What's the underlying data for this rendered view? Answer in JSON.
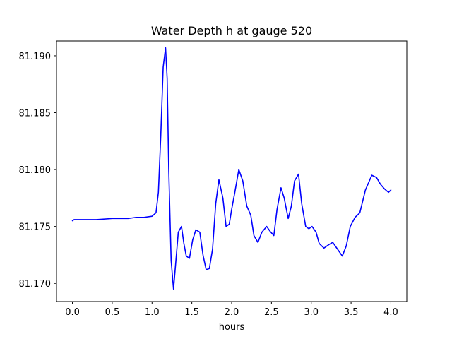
{
  "chart_data": {
    "type": "line",
    "title": "Water Depth h at gauge 520",
    "xlabel": "hours",
    "ylabel": "",
    "xlim": [
      -0.2,
      4.2
    ],
    "ylim": [
      81.1684,
      81.1913
    ],
    "xticks": [
      "0.0",
      "0.5",
      "1.0",
      "1.5",
      "2.0",
      "2.5",
      "3.0",
      "3.5",
      "4.0"
    ],
    "yticks": [
      "81.170",
      "81.175",
      "81.180",
      "81.185",
      "81.190"
    ],
    "grid": false,
    "legend": "none",
    "series": [
      {
        "color": "#0000ff",
        "x": [
          0.0,
          0.02,
          0.1,
          0.3,
          0.5,
          0.7,
          0.8,
          0.9,
          1.0,
          1.05,
          1.08,
          1.11,
          1.14,
          1.17,
          1.19,
          1.21,
          1.24,
          1.27,
          1.3,
          1.33,
          1.37,
          1.4,
          1.43,
          1.47,
          1.51,
          1.55,
          1.6,
          1.64,
          1.68,
          1.72,
          1.76,
          1.8,
          1.84,
          1.89,
          1.93,
          1.97,
          2.0,
          2.04,
          2.09,
          2.14,
          2.19,
          2.24,
          2.28,
          2.33,
          2.38,
          2.44,
          2.48,
          2.53,
          2.57,
          2.62,
          2.66,
          2.71,
          2.75,
          2.79,
          2.84,
          2.88,
          2.93,
          2.97,
          3.01,
          3.06,
          3.1,
          3.16,
          3.22,
          3.27,
          3.33,
          3.39,
          3.44,
          3.49,
          3.55,
          3.61,
          3.68,
          3.76,
          3.82,
          3.87,
          3.92,
          3.97,
          4.0
        ],
        "y": [
          81.1755,
          81.1756,
          81.1756,
          81.1756,
          81.1757,
          81.1757,
          81.1758,
          81.1758,
          81.1759,
          81.1762,
          81.178,
          81.183,
          81.189,
          81.1907,
          81.188,
          81.18,
          81.172,
          81.1695,
          81.172,
          81.1745,
          81.175,
          81.1735,
          81.1724,
          81.1722,
          81.1738,
          81.1747,
          81.1745,
          81.1725,
          81.1712,
          81.1713,
          81.173,
          81.177,
          81.1791,
          81.1775,
          81.175,
          81.1752,
          81.1765,
          81.178,
          81.18,
          81.179,
          81.1768,
          81.176,
          81.1742,
          81.1736,
          81.1745,
          81.175,
          81.1746,
          81.1742,
          81.1765,
          81.1784,
          81.1775,
          81.1757,
          81.1768,
          81.179,
          81.1796,
          81.177,
          81.175,
          81.1748,
          81.175,
          81.1745,
          81.1735,
          81.1731,
          81.1734,
          81.1736,
          81.173,
          81.1724,
          81.1733,
          81.175,
          81.1758,
          81.1762,
          81.1782,
          81.1795,
          81.1793,
          81.1787,
          81.1783,
          81.178,
          81.1782
        ]
      }
    ]
  }
}
